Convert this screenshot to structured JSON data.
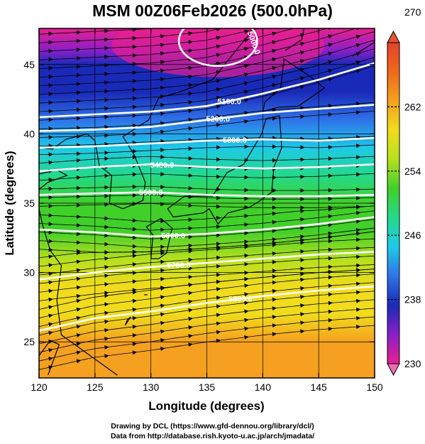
{
  "chart_data": {
    "type": "heatmap",
    "title": "MSM 00Z06Feb2026 (500.0hPa)",
    "xlabel": "Longitude (degrees)",
    "ylabel": "Latitude  (degrees)",
    "xlim": [
      120,
      150
    ],
    "ylim": [
      22.4,
      47.6
    ],
    "x_ticks": [
      "120",
      "125",
      "130",
      "135",
      "140",
      "145",
      "150"
    ],
    "y_ticks": [
      "25",
      "30",
      "35",
      "40",
      "45"
    ],
    "colorbar": {
      "min": 230,
      "max": 270,
      "tick_labels": [
        "270",
        "262",
        "254",
        "246",
        "238",
        "230"
      ],
      "extend": "both",
      "colors": [
        "#e8208e",
        "#8a1fc9",
        "#1a2ab8",
        "#2f73e8",
        "#1ec9e8",
        "#23d98a",
        "#41cf2a",
        "#b4e01e",
        "#f0dc1c",
        "#f5a020",
        "#ee6a1a",
        "#e5402a"
      ]
    },
    "field_profile": {
      "description_levels": "temperature (K) vs latitude at the western edge",
      "lat": [
        47.6,
        46,
        45,
        43,
        41,
        39,
        37,
        35,
        33,
        31,
        29,
        27,
        25,
        22.4
      ],
      "value": [
        230.5,
        233,
        236,
        239,
        241,
        244,
        247,
        250,
        253,
        256,
        258,
        260,
        262,
        264
      ]
    },
    "height_contours": [
      {
        "label": "5100.0",
        "lon_lat": [
          [
            120,
            41.2
          ],
          [
            125,
            41.4
          ],
          [
            130,
            41.6
          ],
          [
            135,
            42.0
          ],
          [
            140,
            42.9
          ],
          [
            145,
            43.9
          ],
          [
            150,
            45.1
          ]
        ]
      },
      {
        "label": "5200.0",
        "lon_lat": [
          [
            120,
            40.2
          ],
          [
            125,
            40.3
          ],
          [
            130,
            40.5
          ],
          [
            135,
            41.0
          ],
          [
            140,
            41.5
          ],
          [
            145,
            41.8
          ],
          [
            150,
            42.1
          ]
        ]
      },
      {
        "label": "5300.0",
        "lon_lat": [
          [
            120,
            39.0
          ],
          [
            125,
            39.1
          ],
          [
            130,
            39.3
          ],
          [
            135,
            39.5
          ],
          [
            140,
            39.6
          ],
          [
            145,
            39.5
          ],
          [
            150,
            39.7
          ]
        ]
      },
      {
        "label": "5400.0",
        "lon_lat": [
          [
            120,
            37.3
          ],
          [
            125,
            37.6
          ],
          [
            130,
            37.8
          ],
          [
            135,
            37.6
          ],
          [
            140,
            37.5
          ],
          [
            145,
            37.6
          ],
          [
            150,
            37.8
          ]
        ]
      },
      {
        "label": "5500.0",
        "lon_lat": [
          [
            120,
            35.6
          ],
          [
            125,
            35.7
          ],
          [
            130,
            35.8
          ],
          [
            135,
            35.6
          ],
          [
            140,
            35.5
          ],
          [
            145,
            35.5
          ],
          [
            150,
            35.6
          ]
        ]
      },
      {
        "label": "5600.0",
        "lon_lat": [
          [
            120,
            33.1
          ],
          [
            125,
            32.9
          ],
          [
            130,
            32.6
          ],
          [
            135,
            32.8
          ],
          [
            140,
            33.1
          ],
          [
            145,
            33.5
          ],
          [
            150,
            34.0
          ]
        ]
      },
      {
        "label": "5700.0",
        "lon_lat": [
          [
            120,
            29.5
          ],
          [
            125,
            30.0
          ],
          [
            130,
            30.4
          ],
          [
            135,
            30.7
          ],
          [
            140,
            31.0
          ],
          [
            145,
            31.3
          ],
          [
            150,
            31.5
          ]
        ]
      },
      {
        "label": "5800.0",
        "lon_lat": [
          [
            120,
            25.8
          ],
          [
            125,
            26.7
          ],
          [
            130,
            27.2
          ],
          [
            135,
            27.8
          ],
          [
            140,
            28.3
          ],
          [
            145,
            28.7
          ],
          [
            150,
            29.0
          ]
        ]
      }
    ],
    "low_contours": [
      {
        "label": "5000.0",
        "center": [
          136.0,
          46.7
        ],
        "radius": [
          3.5,
          1.8
        ]
      }
    ],
    "grid": true,
    "legend": "colorbar-right"
  },
  "footer": {
    "line1": "Drawing by DCL (https://www.gfd-dennou.org/library/dcl/)",
    "line2": "Data from http://database.rish.kyoto-u.ac.jp/arch/jmadata/"
  }
}
